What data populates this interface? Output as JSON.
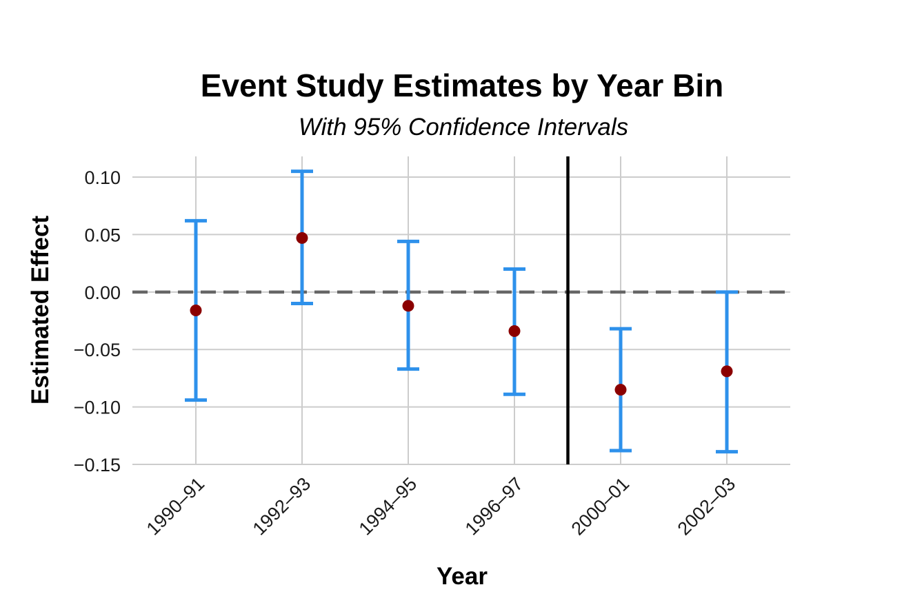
{
  "chart_data": {
    "type": "scatter",
    "title": "Event Study Estimates by Year Bin",
    "subtitle": "With 95% Confidence Intervals",
    "xlabel": "Year",
    "ylabel": "Estimated Effect",
    "categories": [
      "1990–91",
      "1992–93",
      "1994–95",
      "1996–97",
      "2000–01",
      "2002–03"
    ],
    "series": [
      {
        "estimates": [
          -0.016,
          0.047,
          -0.012,
          -0.034,
          -0.085,
          -0.069
        ],
        "ci_lower": [
          -0.094,
          -0.01,
          -0.067,
          -0.089,
          -0.138,
          -0.139
        ],
        "ci_upper": [
          0.062,
          0.105,
          0.044,
          0.02,
          -0.032,
          0.0
        ]
      }
    ],
    "yticks": [
      0.1,
      0.05,
      0.0,
      -0.05,
      -0.1,
      -0.15
    ],
    "ytick_labels": [
      "0.10",
      "0.05",
      "0.00",
      "−0.05",
      "−0.10",
      "−0.15"
    ],
    "ylim": [
      -0.15,
      0.118
    ],
    "reference_line_y": 0,
    "event_line_between": [
      "1996–97",
      "2000–01"
    ],
    "grid": true,
    "colors": {
      "point": "#8b0000",
      "error_bar": "#2e91eb",
      "zero_line": "#666666",
      "event_line": "#000000",
      "grid": "#cccccc"
    }
  }
}
